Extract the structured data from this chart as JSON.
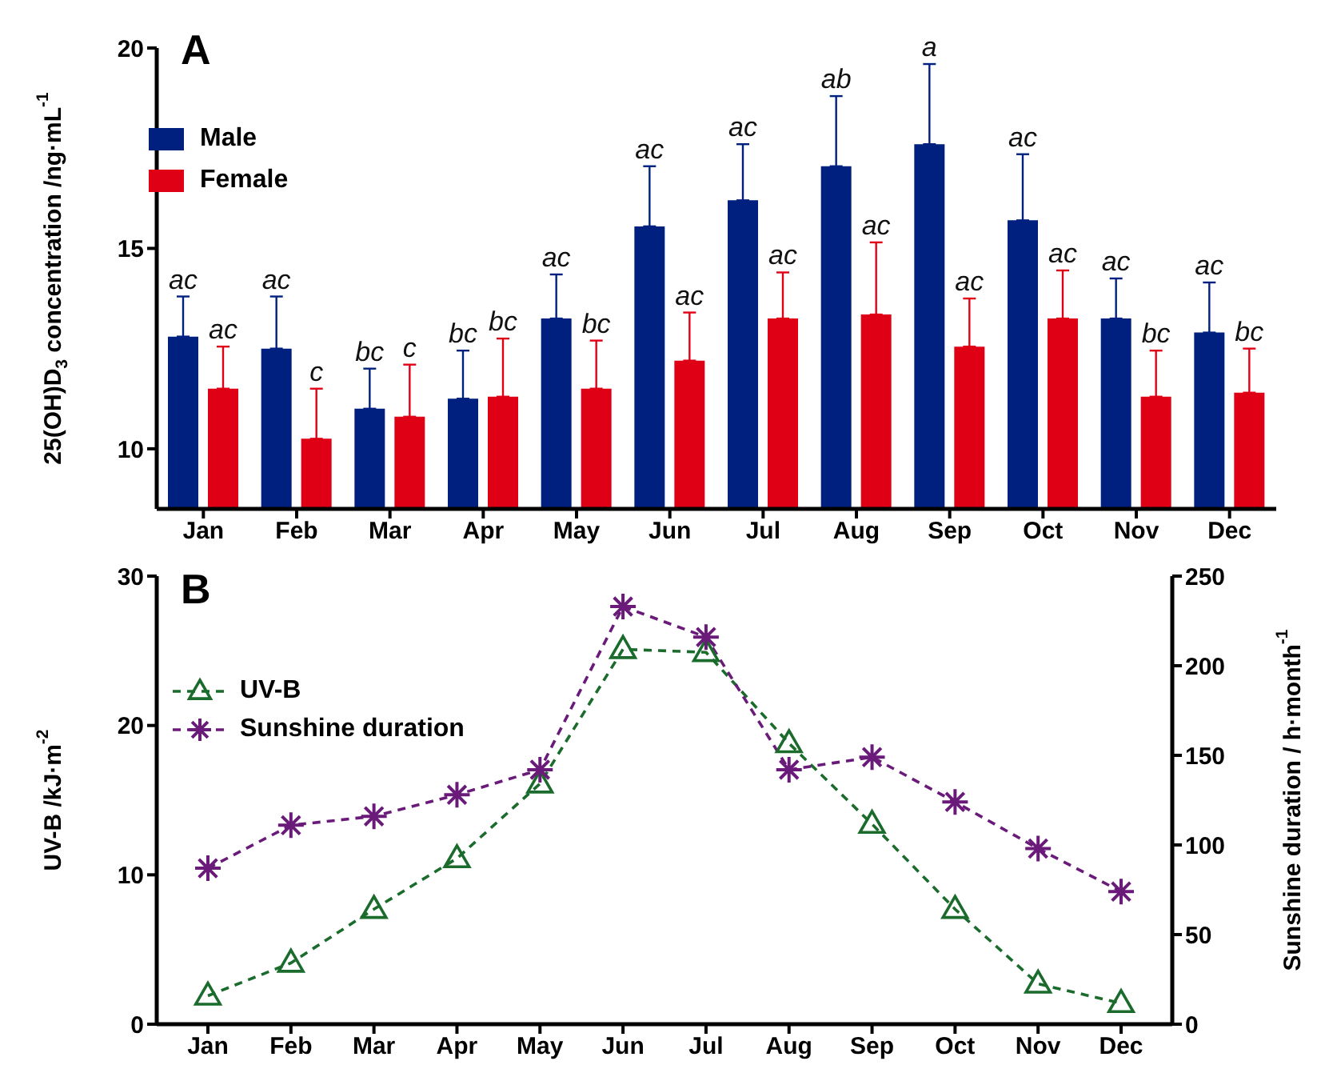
{
  "chart_data": [
    {
      "type": "bar",
      "title": "A",
      "ylabel": "25(OH)D$_{3}$ concentration /ng·mL$^{-1}$",
      "categories": [
        "Jan",
        "Feb",
        "Mar",
        "Apr",
        "May",
        "Jun",
        "Jul",
        "Aug",
        "Sep",
        "Oct",
        "Nov",
        "Dec"
      ],
      "ylim": [
        8.5,
        20
      ],
      "yticks": [
        10,
        15,
        20
      ],
      "legend": "top left",
      "series": [
        {
          "name": "Male",
          "color": "#002080",
          "values": [
            12.8,
            12.5,
            11.0,
            11.25,
            13.25,
            15.55,
            16.2,
            17.05,
            17.6,
            15.7,
            13.25,
            12.9
          ],
          "errors": [
            1.0,
            1.3,
            1.0,
            1.2,
            1.1,
            1.5,
            1.4,
            1.75,
            2.0,
            1.65,
            1.0,
            1.25
          ],
          "value_labels": [
            "ac",
            "ac",
            "bc",
            "bc",
            "ac",
            "ac",
            "ac",
            "ab",
            "a",
            "ac",
            "ac",
            "ac"
          ]
        },
        {
          "name": "Female",
          "color": "#e00016",
          "values": [
            11.5,
            10.25,
            10.8,
            11.3,
            11.5,
            12.2,
            13.25,
            13.35,
            12.55,
            13.25,
            11.3,
            11.4
          ],
          "errors": [
            1.05,
            1.25,
            1.3,
            1.45,
            1.2,
            1.2,
            1.15,
            1.8,
            1.2,
            1.2,
            1.15,
            1.1
          ],
          "value_labels": [
            "ac",
            "c",
            "c",
            "bc",
            "bc",
            "ac",
            "ac",
            "ac",
            "ac",
            "ac",
            "bc",
            "bc"
          ]
        }
      ]
    },
    {
      "type": "line",
      "title": "B",
      "ylabel": "UV-B /kJ·m$^{-2}$",
      "y2label": "Sunshine duration / h·month$^{-1}$",
      "categories": [
        "Jan",
        "Feb",
        "Mar",
        "Apr",
        "May",
        "Jun",
        "Jul",
        "Aug",
        "Sep",
        "Oct",
        "Nov",
        "Dec"
      ],
      "ylim": [
        0,
        30
      ],
      "yticks": [
        0,
        10,
        20,
        30
      ],
      "y2lim": [
        0,
        250
      ],
      "y2ticks": [
        0,
        50,
        100,
        150,
        200,
        250
      ],
      "legend": "top left",
      "line_style": "dashed",
      "series": [
        {
          "name": "UV-B",
          "color": "#1a6b2c",
          "marker": "triangle",
          "values": [
            1.9,
            4.1,
            7.7,
            11.1,
            16.1,
            25.1,
            24.9,
            18.8,
            13.4,
            7.7,
            2.7,
            1.4
          ]
        },
        {
          "name": "Sunshine duration",
          "color": "#6a1b7a",
          "marker": "cross",
          "axis": "y2",
          "values": [
            87,
            111,
            116,
            128,
            142,
            233,
            216,
            142,
            149,
            124,
            98,
            74
          ]
        }
      ]
    }
  ]
}
